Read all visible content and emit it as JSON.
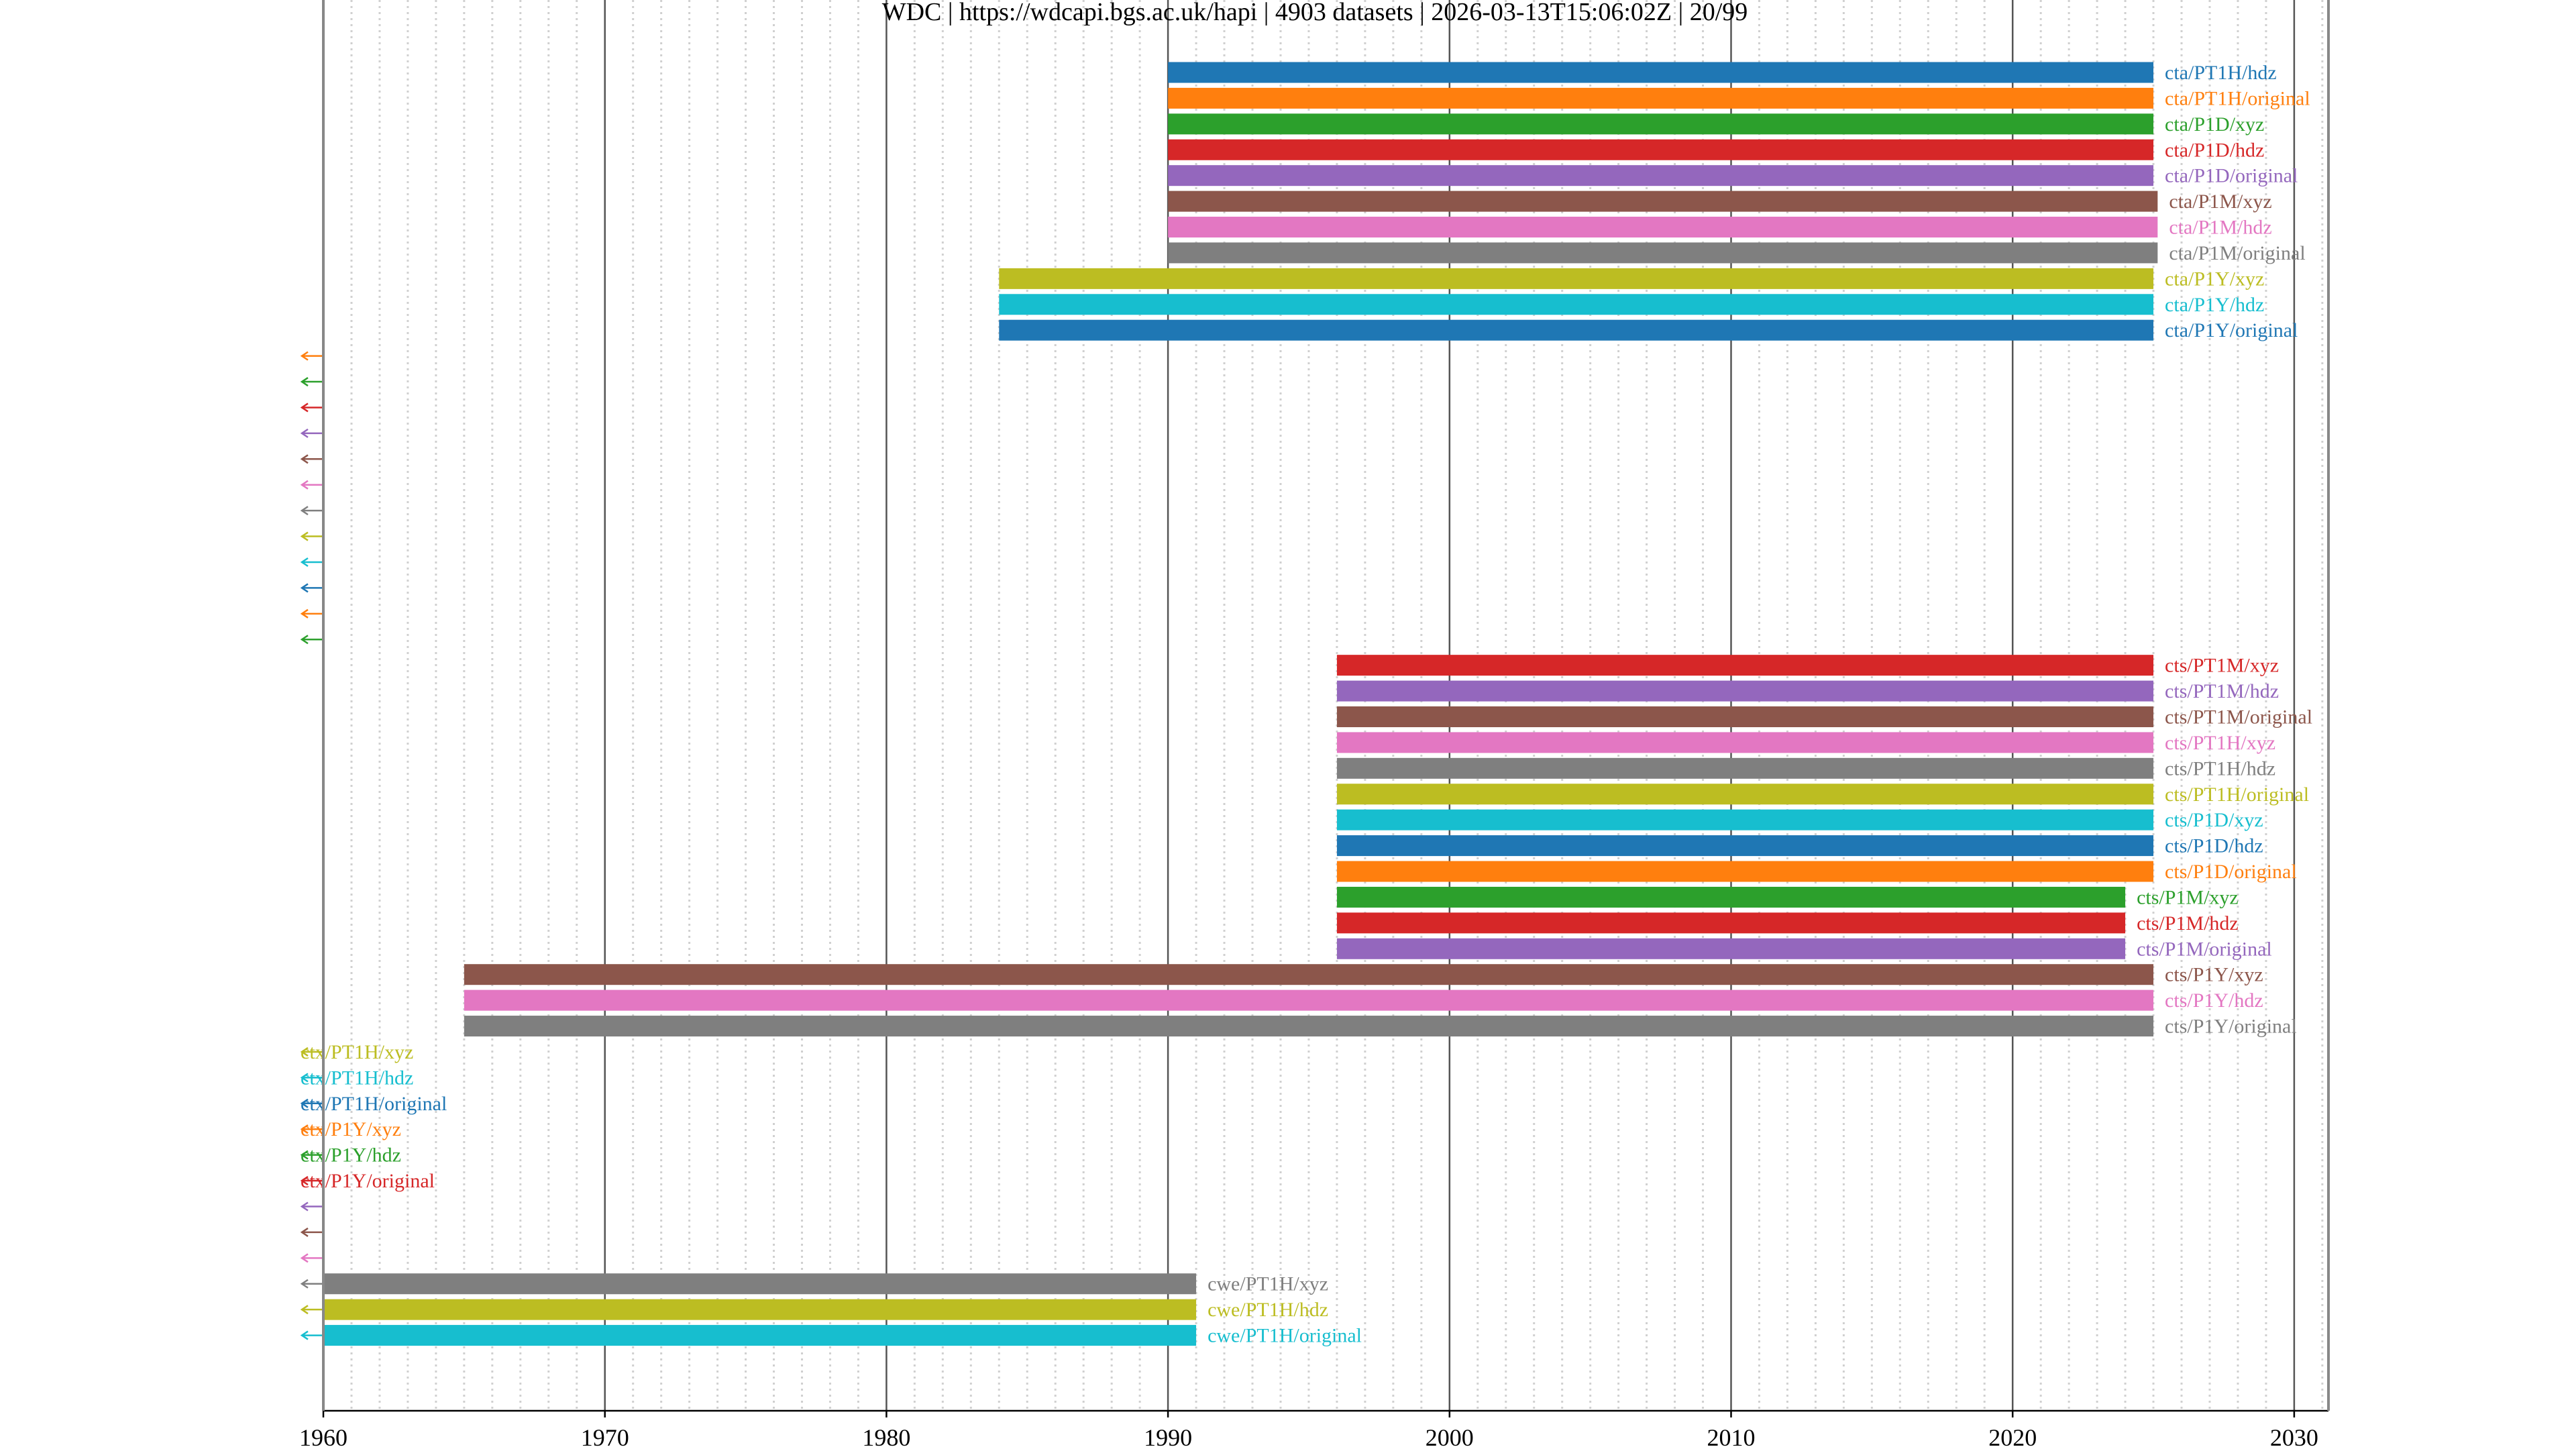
{
  "chart_data": {
    "type": "timeline",
    "title": "WDC | https://wdcapi.bgs.ac.uk/hapi | 4903 datasets | 2026-03-13T15:06:02Z | 20/99",
    "xlim": [
      1960,
      2031
    ],
    "xticks": [
      "1960",
      "1970",
      "1980",
      "1990",
      "2000",
      "2010",
      "2020",
      "2030"
    ],
    "major_grid_years": 10,
    "minor_grid_years": 1,
    "palette": [
      "#1f77b4",
      "#ff7f0e",
      "#2ca02c",
      "#d62728",
      "#9467bd",
      "#8c564b",
      "#e377c2",
      "#7f7f7f",
      "#bcbd22",
      "#17becf"
    ],
    "rows": [
      {
        "label": "cta/PT1H/hdz",
        "start": 1990,
        "end": 2025.0,
        "arrow": false
      },
      {
        "label": "cta/PT1H/original",
        "start": 1990,
        "end": 2025.0,
        "arrow": false
      },
      {
        "label": "cta/P1D/xyz",
        "start": 1990,
        "end": 2025.0,
        "arrow": false
      },
      {
        "label": "cta/P1D/hdz",
        "start": 1990,
        "end": 2025.0,
        "arrow": false
      },
      {
        "label": "cta/P1D/original",
        "start": 1990,
        "end": 2025.0,
        "arrow": false
      },
      {
        "label": "cta/P1M/xyz",
        "start": 1990,
        "end": 2025.15,
        "arrow": false
      },
      {
        "label": "cta/P1M/hdz",
        "start": 1990,
        "end": 2025.15,
        "arrow": false
      },
      {
        "label": "cta/P1M/original",
        "start": 1990,
        "end": 2025.15,
        "arrow": false
      },
      {
        "label": "cta/P1Y/xyz",
        "start": 1984,
        "end": 2025.0,
        "arrow": false
      },
      {
        "label": "cta/P1Y/hdz",
        "start": 1984,
        "end": 2025.0,
        "arrow": false
      },
      {
        "label": "cta/P1Y/original",
        "start": 1984,
        "end": 2025.0,
        "arrow": false
      },
      {
        "label": "",
        "start": null,
        "end": null,
        "arrow": true
      },
      {
        "label": "",
        "start": null,
        "end": null,
        "arrow": true
      },
      {
        "label": "",
        "start": null,
        "end": null,
        "arrow": true
      },
      {
        "label": "",
        "start": null,
        "end": null,
        "arrow": true
      },
      {
        "label": "",
        "start": null,
        "end": null,
        "arrow": true
      },
      {
        "label": "",
        "start": null,
        "end": null,
        "arrow": true
      },
      {
        "label": "",
        "start": null,
        "end": null,
        "arrow": true
      },
      {
        "label": "",
        "start": null,
        "end": null,
        "arrow": true
      },
      {
        "label": "",
        "start": null,
        "end": null,
        "arrow": true
      },
      {
        "label": "",
        "start": null,
        "end": null,
        "arrow": true
      },
      {
        "label": "",
        "start": null,
        "end": null,
        "arrow": true
      },
      {
        "label": "",
        "start": null,
        "end": null,
        "arrow": true
      },
      {
        "label": "cts/PT1M/xyz",
        "start": 1996,
        "end": 2025.0,
        "arrow": false
      },
      {
        "label": "cts/PT1M/hdz",
        "start": 1996,
        "end": 2025.0,
        "arrow": false
      },
      {
        "label": "cts/PT1M/original",
        "start": 1996,
        "end": 2025.0,
        "arrow": false
      },
      {
        "label": "cts/PT1H/xyz",
        "start": 1996,
        "end": 2025.0,
        "arrow": false
      },
      {
        "label": "cts/PT1H/hdz",
        "start": 1996,
        "end": 2025.0,
        "arrow": false
      },
      {
        "label": "cts/PT1H/original",
        "start": 1996,
        "end": 2025.0,
        "arrow": false
      },
      {
        "label": "cts/P1D/xyz",
        "start": 1996,
        "end": 2025.0,
        "arrow": false
      },
      {
        "label": "cts/P1D/hdz",
        "start": 1996,
        "end": 2025.0,
        "arrow": false
      },
      {
        "label": "cts/P1D/original",
        "start": 1996,
        "end": 2025.0,
        "arrow": false
      },
      {
        "label": "cts/P1M/xyz",
        "start": 1996,
        "end": 2024.0,
        "arrow": false
      },
      {
        "label": "cts/P1M/hdz",
        "start": 1996,
        "end": 2024.0,
        "arrow": false
      },
      {
        "label": "cts/P1M/original",
        "start": 1996,
        "end": 2024.0,
        "arrow": false
      },
      {
        "label": "cts/P1Y/xyz",
        "start": 1965,
        "end": 2025.0,
        "arrow": false
      },
      {
        "label": "cts/P1Y/hdz",
        "start": 1965,
        "end": 2025.0,
        "arrow": false
      },
      {
        "label": "cts/P1Y/original",
        "start": 1965,
        "end": 2025.0,
        "arrow": false
      },
      {
        "label": "ctx/PT1H/xyz",
        "start": null,
        "end": null,
        "arrow": true
      },
      {
        "label": "ctx/PT1H/hdz",
        "start": null,
        "end": null,
        "arrow": true
      },
      {
        "label": "ctx/PT1H/original",
        "start": null,
        "end": null,
        "arrow": true
      },
      {
        "label": "ctx/P1Y/xyz",
        "start": null,
        "end": null,
        "arrow": true
      },
      {
        "label": "ctx/P1Y/hdz",
        "start": null,
        "end": null,
        "arrow": true
      },
      {
        "label": "ctx/P1Y/original",
        "start": null,
        "end": null,
        "arrow": true
      },
      {
        "label": "",
        "start": null,
        "end": null,
        "arrow": true
      },
      {
        "label": "",
        "start": null,
        "end": null,
        "arrow": true
      },
      {
        "label": "",
        "start": null,
        "end": null,
        "arrow": true
      },
      {
        "label": "cwe/PT1H/xyz",
        "start": 1960,
        "end": 1991.0,
        "arrow": true
      },
      {
        "label": "cwe/PT1H/hdz",
        "start": 1960,
        "end": 1991.0,
        "arrow": true
      },
      {
        "label": "cwe/PT1H/original",
        "start": 1960,
        "end": 1991.0,
        "arrow": true
      }
    ]
  }
}
